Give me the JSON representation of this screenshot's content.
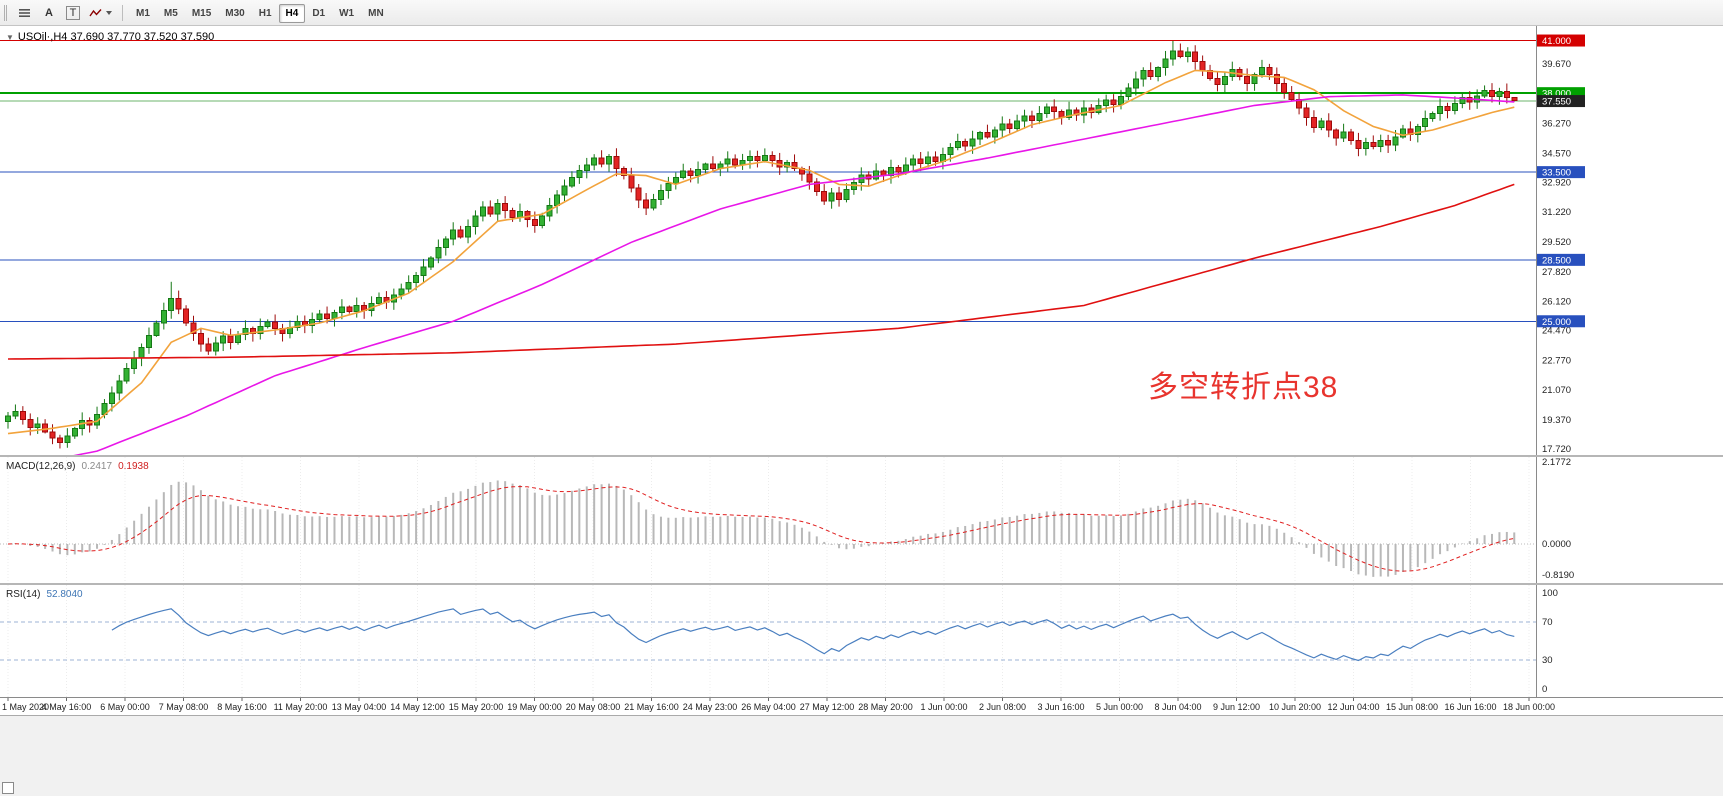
{
  "toolbar": {
    "arrow_label": "A",
    "text_label": "T",
    "timeframes": [
      {
        "label": "M1"
      },
      {
        "label": "M5"
      },
      {
        "label": "M15"
      },
      {
        "label": "M30"
      },
      {
        "label": "H1"
      },
      {
        "label": "H4",
        "active": true
      },
      {
        "label": "D1"
      },
      {
        "label": "W1"
      },
      {
        "label": "MN"
      }
    ]
  },
  "chart": {
    "title": "USOil·,H4 37.690 37.770 37.520 37.590",
    "annotation": {
      "text": "多空转折点38",
      "color": "#e8342e"
    },
    "candle_up": {
      "fill": "#33b133",
      "stroke": "#157815"
    },
    "candle_down": {
      "fill": "#e32424",
      "stroke": "#9e0b0b"
    },
    "hlines": [
      {
        "price": 41.0,
        "color": "#d40000",
        "width": 1,
        "badge": "41.000",
        "badge_bg": "#d40000"
      },
      {
        "price": 38.0,
        "color": "#00a000",
        "width": 2,
        "badge": "38.000",
        "badge_bg": "#00a000"
      },
      {
        "price": 37.55,
        "color": "#6cb56c",
        "width": 1,
        "badge": "37.550",
        "badge_bg": "#222222"
      },
      {
        "price": 33.5,
        "color": "#2850be",
        "width": 1,
        "badge": "33.500",
        "badge_bg": "#2850be"
      },
      {
        "price": 28.5,
        "color": "#2850be",
        "width": 1,
        "badge": "28.500",
        "badge_bg": "#2850be"
      },
      {
        "price": 25.0,
        "color": "#2850be",
        "width": 1,
        "badge": "25.000",
        "badge_bg": "#2850be"
      }
    ],
    "price_labels": [
      "39.670",
      "36.270",
      "34.570",
      "32.920",
      "31.220",
      "29.520",
      "27.820",
      "26.120",
      "24.470",
      "22.770",
      "21.070",
      "19.370",
      "17.720"
    ],
    "moving_averages": [
      {
        "name": "ma-fast",
        "color": "#f2a33c",
        "anchors": [
          [
            0,
            18.6
          ],
          [
            6,
            18.9
          ],
          [
            12,
            19.3
          ],
          [
            18,
            21.5
          ],
          [
            22,
            23.8
          ],
          [
            26,
            24.6
          ],
          [
            30,
            24.2
          ],
          [
            36,
            24.5
          ],
          [
            42,
            24.9
          ],
          [
            48,
            25.6
          ],
          [
            54,
            26.6
          ],
          [
            60,
            28.4
          ],
          [
            66,
            30.7
          ],
          [
            72,
            31.1
          ],
          [
            78,
            32.5
          ],
          [
            82,
            33.4
          ],
          [
            86,
            33.3
          ],
          [
            90,
            32.8
          ],
          [
            96,
            33.7
          ],
          [
            102,
            34.1
          ],
          [
            108,
            33.6
          ],
          [
            112,
            32.8
          ],
          [
            116,
            32.7
          ],
          [
            120,
            33.3
          ],
          [
            126,
            34.1
          ],
          [
            132,
            35.1
          ],
          [
            138,
            36.2
          ],
          [
            144,
            36.8
          ],
          [
            150,
            37.3
          ],
          [
            156,
            38.6
          ],
          [
            160,
            39.3
          ],
          [
            164,
            39.2
          ],
          [
            168,
            39.0
          ],
          [
            172,
            38.9
          ],
          [
            176,
            38.2
          ],
          [
            180,
            37.0
          ],
          [
            184,
            36.1
          ],
          [
            188,
            35.6
          ],
          [
            192,
            35.9
          ],
          [
            196,
            36.4
          ],
          [
            200,
            36.9
          ],
          [
            203,
            37.2
          ]
        ]
      },
      {
        "name": "ma-mid",
        "color": "#e816e8",
        "anchors": [
          [
            0,
            16.6
          ],
          [
            12,
            17.6
          ],
          [
            24,
            19.6
          ],
          [
            36,
            21.9
          ],
          [
            48,
            23.5
          ],
          [
            60,
            25.0
          ],
          [
            72,
            27.1
          ],
          [
            84,
            29.5
          ],
          [
            96,
            31.4
          ],
          [
            108,
            32.8
          ],
          [
            120,
            33.4
          ],
          [
            132,
            34.3
          ],
          [
            144,
            35.3
          ],
          [
            156,
            36.3
          ],
          [
            168,
            37.3
          ],
          [
            178,
            37.8
          ],
          [
            188,
            37.9
          ],
          [
            196,
            37.7
          ],
          [
            203,
            37.5
          ]
        ]
      },
      {
        "name": "ma-slow",
        "color": "#e01010",
        "anchors": [
          [
            0,
            22.85
          ],
          [
            30,
            22.95
          ],
          [
            60,
            23.2
          ],
          [
            90,
            23.7
          ],
          [
            120,
            24.6
          ],
          [
            145,
            25.9
          ],
          [
            168,
            28.6
          ],
          [
            185,
            30.4
          ],
          [
            195,
            31.6
          ],
          [
            203,
            32.8
          ]
        ]
      }
    ]
  },
  "chart_data": {
    "type": "candlestick",
    "title": "USOil H4",
    "symbol": "USOil",
    "timeframe": "H4",
    "ohlc_current": {
      "open": "37.690",
      "high": "37.770",
      "low": "37.520",
      "close": "37.590"
    },
    "y_range": [
      17.72,
      41.6
    ],
    "first_open": 19.3,
    "closes": [
      19.6,
      19.85,
      19.4,
      18.95,
      19.15,
      18.7,
      18.35,
      18.1,
      18.45,
      18.9,
      19.35,
      19.1,
      19.7,
      20.3,
      20.9,
      21.6,
      22.3,
      22.9,
      23.5,
      24.2,
      24.9,
      25.6,
      26.3,
      25.7,
      24.9,
      24.3,
      23.7,
      23.3,
      23.75,
      24.15,
      23.8,
      24.25,
      24.6,
      24.3,
      24.7,
      24.95,
      24.6,
      24.3,
      24.65,
      25.0,
      24.75,
      25.1,
      25.4,
      25.15,
      25.5,
      25.8,
      25.55,
      25.9,
      25.6,
      26.0,
      26.35,
      26.1,
      26.5,
      26.85,
      27.2,
      27.6,
      28.1,
      28.6,
      29.2,
      29.7,
      30.2,
      29.8,
      30.4,
      31.0,
      31.5,
      31.1,
      31.7,
      31.3,
      30.9,
      31.25,
      30.8,
      30.45,
      31.0,
      31.6,
      32.2,
      32.7,
      33.2,
      33.6,
      33.9,
      34.3,
      33.95,
      34.4,
      33.7,
      33.3,
      32.6,
      31.9,
      31.45,
      31.95,
      32.45,
      32.85,
      33.2,
      33.55,
      33.3,
      33.65,
      33.95,
      33.7,
      33.95,
      34.25,
      33.9,
      34.15,
      34.4,
      34.15,
      34.45,
      34.15,
      33.8,
      34.05,
      33.7,
      33.4,
      32.95,
      32.4,
      31.85,
      32.3,
      31.95,
      32.5,
      32.9,
      33.35,
      33.1,
      33.55,
      33.3,
      33.75,
      33.5,
      33.9,
      34.25,
      34.0,
      34.35,
      34.1,
      34.5,
      34.9,
      35.25,
      35.0,
      35.4,
      35.75,
      35.5,
      35.9,
      36.25,
      36.0,
      36.4,
      36.7,
      36.45,
      36.85,
      37.2,
      36.95,
      36.6,
      37.05,
      36.75,
      37.15,
      36.9,
      37.3,
      37.6,
      37.35,
      37.8,
      38.3,
      38.8,
      39.3,
      38.95,
      39.45,
      39.95,
      40.4,
      40.1,
      40.35,
      39.8,
      39.3,
      38.85,
      38.5,
      38.95,
      39.35,
      38.95,
      38.55,
      39.05,
      39.45,
      39.05,
      38.55,
      38.05,
      37.65,
      37.15,
      36.6,
      36.05,
      36.4,
      35.9,
      35.45,
      35.8,
      35.3,
      34.85,
      35.2,
      34.95,
      35.3,
      35.05,
      35.5,
      35.95,
      35.65,
      36.1,
      36.55,
      36.85,
      37.25,
      37.0,
      37.4,
      37.75,
      37.5,
      37.85,
      38.15,
      37.8,
      38.1,
      37.75,
      37.59
    ],
    "wick_high_overrides": {
      "22": 27.25,
      "157": 40.98,
      "203": 37.77
    },
    "wick_low_overrides": {
      "7": 17.75,
      "203": 37.52
    },
    "x_labels": [
      "1 May 2020",
      "4 May 16:00",
      "6 May 00:00",
      "7 May 08:00",
      "8 May 16:00",
      "11 May 20:00",
      "13 May 04:00",
      "14 May 12:00",
      "15 May 20:00",
      "19 May 00:00",
      "20 May 08:00",
      "21 May 16:00",
      "24 May 23:00",
      "26 May 04:00",
      "27 May 12:00",
      "28 May 20:00",
      "1 Jun 00:00",
      "2 Jun 08:00",
      "3 Jun 16:00",
      "5 Jun 00:00",
      "8 Jun 04:00",
      "9 Jun 12:00",
      "10 Jun 20:00",
      "12 Jun 04:00",
      "15 Jun 08:00",
      "16 Jun 16:00",
      "18 Jun 00:00"
    ]
  },
  "macd": {
    "label": "MACD(12,26,9)",
    "value_main": "0.2417",
    "value_signal": "0.1938",
    "params": [
      12,
      26,
      9
    ],
    "scale_labels": [
      "2.1772",
      "0.0000",
      "-0.8190"
    ]
  },
  "rsi": {
    "label": "RSI(14)",
    "value": "52.8040",
    "period": 14,
    "levels": [
      70,
      30
    ],
    "scale_labels": [
      "100",
      "70",
      "30",
      "0"
    ]
  }
}
